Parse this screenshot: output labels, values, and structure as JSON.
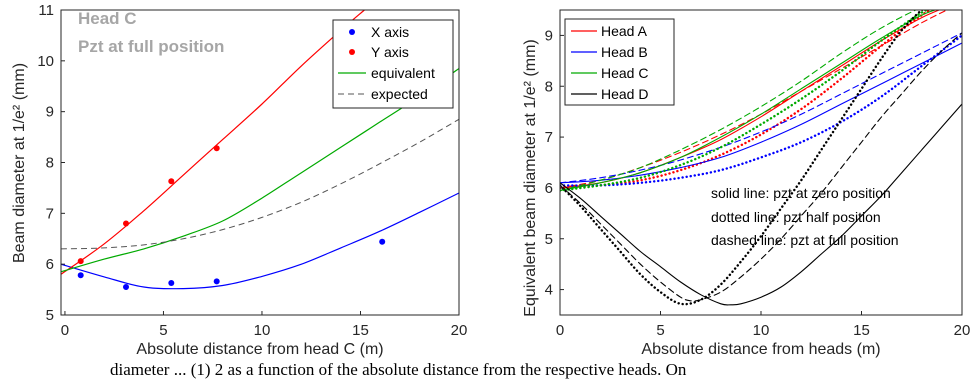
{
  "caption_fragment": "diameter ... (1) 2 as a function of the absolute distance from the respective heads. On",
  "chart_data": [
    {
      "type": "scatter",
      "title": "Head C",
      "subtitle": "Pzt at full position",
      "xlabel": "Absolute distance from head C (m)",
      "ylabel": "Beam diameter at 1/e² (mm)",
      "xlim": [
        -0.2,
        20
      ],
      "ylim": [
        5,
        11
      ],
      "xticks": [
        0,
        5,
        10,
        15,
        20
      ],
      "yticks": [
        5,
        6,
        7,
        8,
        9,
        10,
        11
      ],
      "grid": false,
      "legend_position": "top-right",
      "legend": [
        "X axis",
        "Y axis",
        "equivalent",
        "expected"
      ],
      "points": [
        {
          "name": "X axis",
          "color": "#0000ff",
          "x": [
            0.8,
            3.1,
            5.4,
            7.7,
            16.1
          ],
          "y": [
            5.78,
            5.55,
            5.63,
            5.66,
            6.44
          ]
        },
        {
          "name": "Y axis",
          "color": "#ff0000",
          "x": [
            0.8,
            3.1,
            5.4,
            7.7
          ],
          "y": [
            6.06,
            6.8,
            7.63,
            8.28
          ]
        }
      ],
      "fits": [
        {
          "name": "X axis",
          "color": "#0000ff",
          "style": "solid",
          "x": [
            -0.2,
            2,
            4,
            6,
            8,
            10,
            12,
            14,
            16,
            18,
            20
          ],
          "y": [
            6.0,
            5.75,
            5.55,
            5.52,
            5.58,
            5.76,
            6.0,
            6.32,
            6.65,
            7.02,
            7.4
          ]
        },
        {
          "name": "Y axis",
          "color": "#ff0000",
          "style": "solid",
          "x": [
            -0.2,
            2,
            4,
            6,
            8,
            10,
            12,
            14,
            15.2
          ],
          "y": [
            5.8,
            6.4,
            7.05,
            7.75,
            8.45,
            9.15,
            9.9,
            10.6,
            11.0
          ]
        },
        {
          "name": "equivalent",
          "color": "#00aa00",
          "style": "solid",
          "x": [
            -0.2,
            2,
            4,
            6,
            8,
            10,
            12,
            14,
            16,
            18,
            20
          ],
          "y": [
            5.85,
            6.1,
            6.3,
            6.55,
            6.85,
            7.3,
            7.8,
            8.3,
            8.8,
            9.3,
            9.85
          ]
        },
        {
          "name": "expected",
          "color": "#555555",
          "style": "dashed",
          "x": [
            -0.2,
            2,
            4,
            6,
            8,
            10,
            12,
            14,
            16,
            18,
            20
          ],
          "y": [
            6.3,
            6.32,
            6.38,
            6.5,
            6.68,
            6.92,
            7.22,
            7.58,
            7.98,
            8.4,
            8.85
          ]
        }
      ]
    },
    {
      "type": "line",
      "xlabel": "Absolute distance from heads (m)",
      "ylabel": "Equivalent beam diameter at 1/e² (mm)",
      "xlim": [
        0,
        20
      ],
      "ylim": [
        3.5,
        9.5
      ],
      "xticks": [
        0,
        5,
        10,
        15,
        20
      ],
      "yticks": [
        4,
        5,
        6,
        7,
        8,
        9
      ],
      "grid": false,
      "legend_position": "top-left",
      "legend": [
        "Head A",
        "Head B",
        "Head C",
        "Head D"
      ],
      "annotations": [
        "solid line: pzt at zero position",
        "dotted line: pzt half position",
        "dashed line: pzt at full position"
      ],
      "series": [
        {
          "name": "Head A",
          "color": "#ff0000",
          "style": "solid",
          "x": [
            0,
            2,
            4,
            6,
            8,
            10,
            12,
            14,
            16,
            18,
            19.5
          ],
          "y": [
            6.0,
            6.1,
            6.3,
            6.6,
            6.95,
            7.4,
            7.9,
            8.4,
            8.9,
            9.35,
            9.6
          ]
        },
        {
          "name": "Head A",
          "color": "#ff0000",
          "style": "dotted",
          "x": [
            0,
            2,
            4,
            6,
            8,
            10,
            12,
            14,
            16,
            18,
            19
          ],
          "y": [
            6.0,
            6.05,
            6.15,
            6.35,
            6.65,
            7.05,
            7.55,
            8.15,
            8.8,
            9.4,
            9.6
          ]
        },
        {
          "name": "Head A",
          "color": "#ff0000",
          "style": "dashed",
          "x": [
            0,
            2,
            4,
            6,
            8,
            10,
            12,
            14,
            16,
            18,
            19.5
          ],
          "y": [
            6.0,
            6.15,
            6.4,
            6.7,
            7.05,
            7.45,
            7.9,
            8.35,
            8.8,
            9.25,
            9.55
          ]
        },
        {
          "name": "Head B",
          "color": "#0000ff",
          "style": "solid",
          "x": [
            0,
            2,
            4,
            6,
            8,
            10,
            12,
            14,
            16,
            18,
            20
          ],
          "y": [
            6.1,
            6.15,
            6.25,
            6.4,
            6.6,
            6.9,
            7.25,
            7.65,
            8.05,
            8.45,
            8.85
          ]
        },
        {
          "name": "Head B",
          "color": "#0000ff",
          "style": "dotted",
          "x": [
            0,
            2,
            4,
            6,
            8,
            10,
            12,
            14,
            16,
            18,
            20
          ],
          "y": [
            6.05,
            6.05,
            6.1,
            6.2,
            6.35,
            6.6,
            6.9,
            7.3,
            7.8,
            8.4,
            9.0
          ]
        },
        {
          "name": "Head B",
          "color": "#0000ff",
          "style": "dashed",
          "x": [
            0,
            2,
            4,
            6,
            8,
            10,
            12,
            14,
            16,
            18,
            20
          ],
          "y": [
            6.1,
            6.2,
            6.35,
            6.55,
            6.8,
            7.1,
            7.45,
            7.85,
            8.25,
            8.65,
            9.05
          ]
        },
        {
          "name": "Head C",
          "color": "#00aa00",
          "style": "solid",
          "x": [
            0,
            2,
            4,
            6,
            8,
            10,
            12,
            14,
            16,
            18,
            19.5
          ],
          "y": [
            5.95,
            6.1,
            6.3,
            6.6,
            7.0,
            7.45,
            7.95,
            8.45,
            8.95,
            9.4,
            9.6
          ]
        },
        {
          "name": "Head C",
          "color": "#00aa00",
          "style": "dotted",
          "x": [
            0,
            2,
            4,
            6,
            8,
            10,
            12,
            14,
            16,
            18,
            19
          ],
          "y": [
            5.95,
            6.05,
            6.2,
            6.45,
            6.8,
            7.25,
            7.75,
            8.3,
            8.9,
            9.45,
            9.6
          ]
        },
        {
          "name": "Head C",
          "color": "#00aa00",
          "style": "dashed",
          "x": [
            0,
            2,
            4,
            6,
            8,
            10,
            12,
            14,
            16,
            18,
            19
          ],
          "y": [
            5.95,
            6.15,
            6.4,
            6.75,
            7.15,
            7.6,
            8.1,
            8.65,
            9.15,
            9.55,
            9.6
          ]
        },
        {
          "name": "Head D",
          "color": "#000000",
          "style": "solid",
          "x": [
            0,
            1,
            2,
            3,
            4,
            5,
            6,
            7,
            8,
            8.5,
            9,
            10,
            11,
            12,
            13,
            14,
            15,
            16,
            17,
            18,
            19,
            20
          ],
          "y": [
            6.1,
            5.8,
            5.45,
            5.1,
            4.75,
            4.45,
            4.15,
            3.9,
            3.72,
            3.7,
            3.72,
            3.85,
            4.05,
            4.35,
            4.7,
            5.05,
            5.45,
            5.85,
            6.3,
            6.75,
            7.2,
            7.65
          ]
        },
        {
          "name": "Head D",
          "color": "#000000",
          "style": "dotted",
          "x": [
            0,
            1,
            2,
            3,
            4,
            5,
            6,
            7,
            8,
            9,
            10,
            11,
            12,
            13,
            14,
            15,
            16,
            17,
            18,
            18.5
          ],
          "y": [
            6.05,
            5.65,
            5.2,
            4.75,
            4.3,
            3.95,
            3.72,
            3.8,
            4.1,
            4.55,
            5.05,
            5.6,
            6.15,
            6.75,
            7.35,
            7.95,
            8.55,
            9.1,
            9.5,
            9.6
          ]
        },
        {
          "name": "Head D",
          "color": "#000000",
          "style": "dashed",
          "x": [
            0,
            1,
            2,
            3,
            4,
            5,
            6,
            6.5,
            7,
            8,
            9,
            10,
            11,
            12,
            13,
            14,
            15,
            16,
            17,
            18,
            19,
            20
          ],
          "y": [
            6.05,
            5.7,
            5.3,
            4.9,
            4.5,
            4.15,
            3.85,
            3.78,
            3.8,
            3.95,
            4.25,
            4.6,
            5.0,
            5.45,
            5.9,
            6.4,
            6.9,
            7.4,
            7.85,
            8.3,
            8.7,
            9.05
          ]
        }
      ]
    }
  ]
}
